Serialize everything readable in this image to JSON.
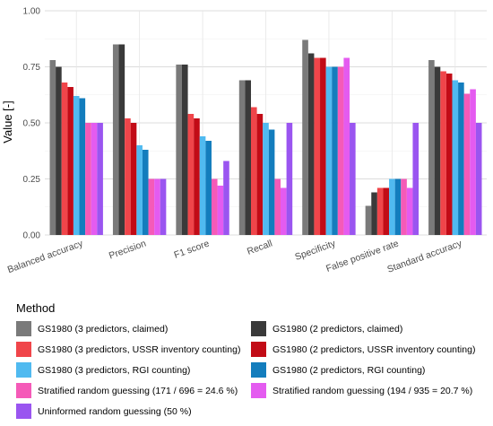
{
  "chart_data": {
    "type": "bar",
    "ylabel": "Value [-]",
    "xlabel": "",
    "ylim": [
      0,
      1
    ],
    "yticks": [
      "0.00",
      "0.25",
      "0.50",
      "0.75",
      "1.00"
    ],
    "categories": [
      "Balanced accuracy",
      "Precision",
      "F1 score",
      "Recall",
      "Specificity",
      "False positive rate",
      "Standard accuracy"
    ],
    "grid": true,
    "legend_position": "bottom",
    "legend_title": "Method",
    "series": [
      {
        "name": "GS1980 (3 predictors, claimed)",
        "color": "#7a7a7a",
        "values": [
          0.78,
          0.85,
          0.76,
          0.69,
          0.87,
          0.13,
          0.78
        ]
      },
      {
        "name": "GS1980 (2 predictors, claimed)",
        "color": "#3a3a3a",
        "values": [
          0.75,
          0.85,
          0.76,
          0.69,
          0.81,
          0.19,
          0.75
        ]
      },
      {
        "name": "GS1980 (3 predictors, USSR inventory counting)",
        "color": "#f0454a",
        "values": [
          0.68,
          0.52,
          0.54,
          0.57,
          0.79,
          0.21,
          0.73
        ]
      },
      {
        "name": "GS1980 (2 predictors, USSR inventory counting)",
        "color": "#c20b16",
        "values": [
          0.66,
          0.5,
          0.52,
          0.54,
          0.79,
          0.21,
          0.72
        ]
      },
      {
        "name": "GS1980 (3 predictors, RGI counting)",
        "color": "#50baf0",
        "values": [
          0.62,
          0.4,
          0.44,
          0.5,
          0.75,
          0.25,
          0.69
        ]
      },
      {
        "name": "GS1980 (2 predictors, RGI counting)",
        "color": "#137dbd",
        "values": [
          0.61,
          0.38,
          0.42,
          0.47,
          0.75,
          0.25,
          0.68
        ]
      },
      {
        "name": "Stratified random guessing (171 / 696 = 24.6 %)",
        "color": "#f55ab8",
        "values": [
          0.5,
          0.25,
          0.25,
          0.25,
          0.75,
          0.25,
          0.63
        ]
      },
      {
        "name": "Stratified random guessing (194 / 935 = 20.7 %)",
        "color": "#e45bf0",
        "values": [
          0.5,
          0.25,
          0.22,
          0.21,
          0.79,
          0.21,
          0.65
        ]
      },
      {
        "name": "Uninformed random guessing (50 %)",
        "color": "#9a55f0",
        "values": [
          0.5,
          0.25,
          0.33,
          0.5,
          0.5,
          0.5,
          0.5
        ]
      }
    ]
  },
  "legend_order": [
    0,
    1,
    2,
    3,
    4,
    5,
    6,
    7,
    8
  ]
}
